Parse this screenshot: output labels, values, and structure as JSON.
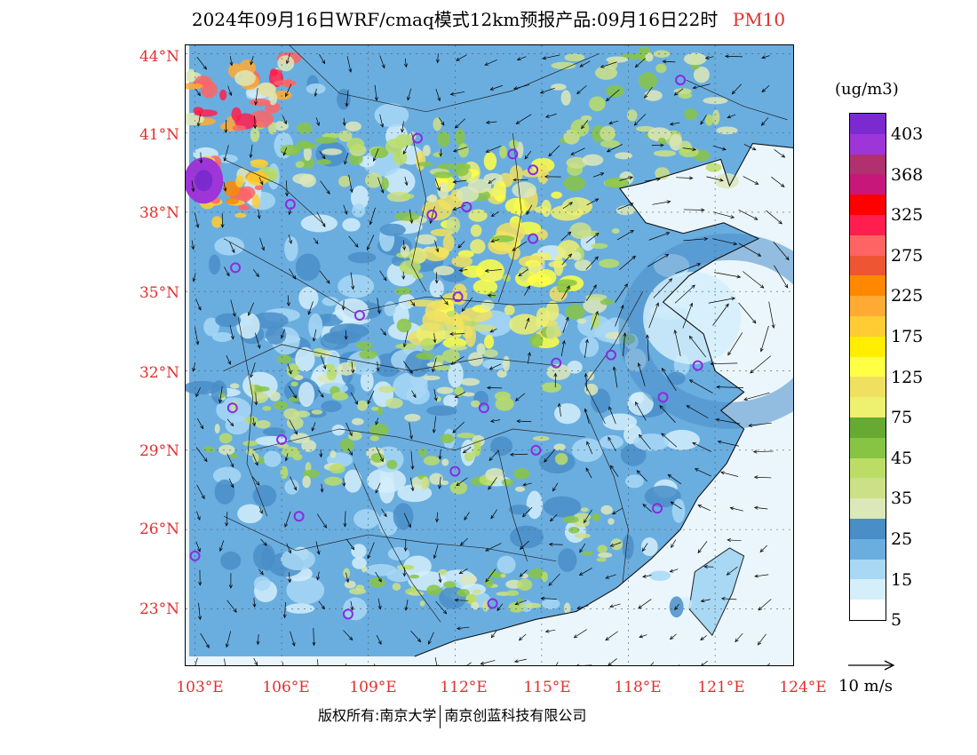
{
  "title": {
    "main": "2024年09月16日WRF/cmaq模式12km预报产品:09月16日22时",
    "pollutant": "PM10"
  },
  "axes": {
    "lat_labels": [
      "44°N",
      "41°N",
      "38°N",
      "35°N",
      "32°N",
      "29°N",
      "26°N",
      "23°N"
    ],
    "lon_labels": [
      "103°E",
      "106°E",
      "109°E",
      "112°E",
      "115°E",
      "118°E",
      "121°E",
      "124°E"
    ]
  },
  "legend": {
    "unit": "(ug/m3)",
    "levels": [
      "403",
      "368",
      "325",
      "275",
      "225",
      "175",
      "125",
      "75",
      "45",
      "35",
      "25",
      "15",
      "5"
    ],
    "colors": [
      "#7b2ad0",
      "#9d35d8",
      "#b03070",
      "#c8177a",
      "#ff0000",
      "#ff1e4e",
      "#ff6464",
      "#ee5533",
      "#ff8800",
      "#ffaa33",
      "#ffcc33",
      "#ffee00",
      "#ffff44",
      "#f0e060",
      "#eef070",
      "#66aa33",
      "#88c444",
      "#bbdd66",
      "#cce088",
      "#dde8b8",
      "#4a8ec8",
      "#6aaee0",
      "#a8d8f4",
      "#d4eefa",
      "#ffffff"
    ]
  },
  "wind_reference": {
    "label": "10 m/s"
  },
  "copyright": {
    "left": "版权所有:南京大学",
    "right": "南京创蓝科技有限公司"
  },
  "map": {
    "extent": {
      "lon": [
        102.8,
        124.0
      ],
      "lat": [
        21.2,
        44.6
      ]
    },
    "land_color": "#6aaee0",
    "sea_color": "#eaf6fc",
    "cities": [
      {
        "lon": 119.8,
        "lat": 43.0
      },
      {
        "lon": 110.7,
        "lat": 40.8
      },
      {
        "lon": 114.0,
        "lat": 40.2
      },
      {
        "lon": 114.7,
        "lat": 39.6
      },
      {
        "lon": 106.3,
        "lat": 38.3
      },
      {
        "lon": 111.2,
        "lat": 37.9
      },
      {
        "lon": 112.4,
        "lat": 38.2
      },
      {
        "lon": 114.7,
        "lat": 37.0
      },
      {
        "lon": 104.4,
        "lat": 35.9
      },
      {
        "lon": 112.1,
        "lat": 34.8
      },
      {
        "lon": 108.7,
        "lat": 34.1
      },
      {
        "lon": 115.5,
        "lat": 32.3
      },
      {
        "lon": 117.4,
        "lat": 32.6
      },
      {
        "lon": 120.4,
        "lat": 32.2
      },
      {
        "lon": 119.2,
        "lat": 31.0
      },
      {
        "lon": 104.3,
        "lat": 30.6
      },
      {
        "lon": 113.0,
        "lat": 30.6
      },
      {
        "lon": 106.0,
        "lat": 29.4
      },
      {
        "lon": 114.8,
        "lat": 29.0
      },
      {
        "lon": 112.0,
        "lat": 28.2
      },
      {
        "lon": 106.6,
        "lat": 26.5
      },
      {
        "lon": 119.0,
        "lat": 26.8
      },
      {
        "lon": 103.0,
        "lat": 25.0
      },
      {
        "lon": 108.3,
        "lat": 22.8
      },
      {
        "lon": 113.3,
        "lat": 23.2
      }
    ]
  }
}
